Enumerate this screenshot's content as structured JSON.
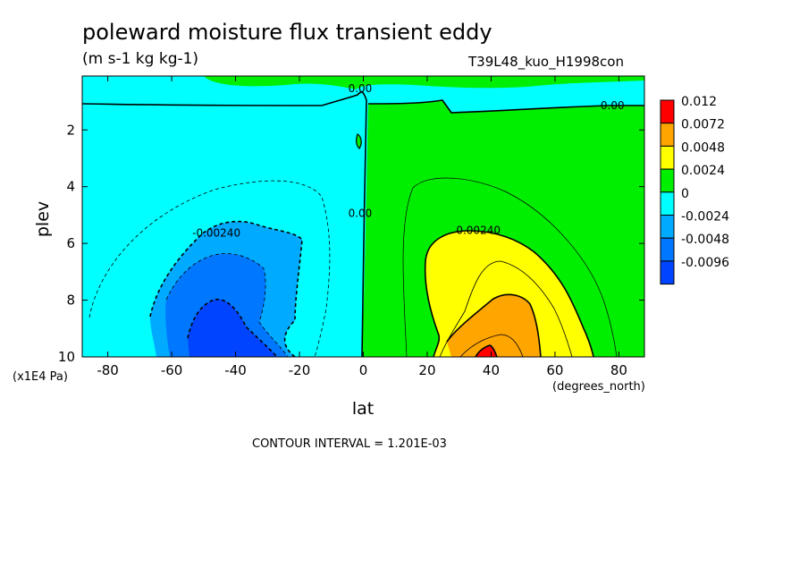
{
  "header": {
    "title": "poleward moisture flux transient eddy",
    "subtitle": "(m s-1 kg kg-1)",
    "run": "T39L48_kuo_H1998con"
  },
  "footer": {
    "unit_note": "(x1E4 Pa)",
    "x_unit": "(degrees_north)",
    "contour_interval": "CONTOUR INTERVAL = 1.201E-03"
  },
  "chart_data": {
    "type": "heatmap",
    "title": "poleward moisture flux transient eddy",
    "subtitle": "(m s-1 kg kg-1)",
    "xlabel": "lat",
    "ylabel": "plev",
    "xlim": [
      -88,
      88
    ],
    "ylim": [
      10,
      0.1
    ],
    "x_ticks": [
      -80,
      -60,
      -40,
      -20,
      0,
      20,
      40,
      60,
      80
    ],
    "x_tick_labels": [
      "-80",
      "-60",
      "-40",
      "-20",
      "0",
      "20",
      "40",
      "60",
      "80"
    ],
    "y_ticks": [
      2,
      4,
      6,
      8,
      10
    ],
    "y_tick_labels": [
      "2",
      "4",
      "6",
      "8",
      "10"
    ],
    "legend": {
      "placement": "right",
      "labels": [
        "0.012",
        "0.0072",
        "0.0048",
        "0.0024",
        "0",
        "-0.0024",
        "-0.0048",
        "-0.0096"
      ],
      "colors": [
        "#ff0000",
        "#ffa500",
        "#ffff00",
        "#00ee00",
        "#00ffff",
        "#00aaff",
        "#0077ff",
        "#0044ff"
      ]
    },
    "contour_labels": [
      {
        "text": "0.00",
        "lat": -1,
        "plev": 0.6
      },
      {
        "text": "0.00",
        "lat": 78,
        "plev": 1.2
      },
      {
        "text": "0.00",
        "lat": -1,
        "plev": 5.0
      },
      {
        "text": "-0.00240",
        "lat": -46,
        "plev": 5.7
      },
      {
        "text": "0.00240",
        "lat": 36,
        "plev": 5.6
      }
    ],
    "regions": [
      {
        "name": "top-green",
        "color": "#00ee00"
      },
      {
        "name": "cyan",
        "color": "#00ffff"
      },
      {
        "name": "green-nh",
        "color": "#00ee00"
      },
      {
        "name": "blue-1",
        "color": "#00aaff"
      },
      {
        "name": "blue-2",
        "color": "#0077ff"
      },
      {
        "name": "blue-3",
        "color": "#0044ff"
      },
      {
        "name": "yellow",
        "color": "#ffff00"
      },
      {
        "name": "orange",
        "color": "#ffa500"
      },
      {
        "name": "red",
        "color": "#ff0000"
      }
    ]
  }
}
